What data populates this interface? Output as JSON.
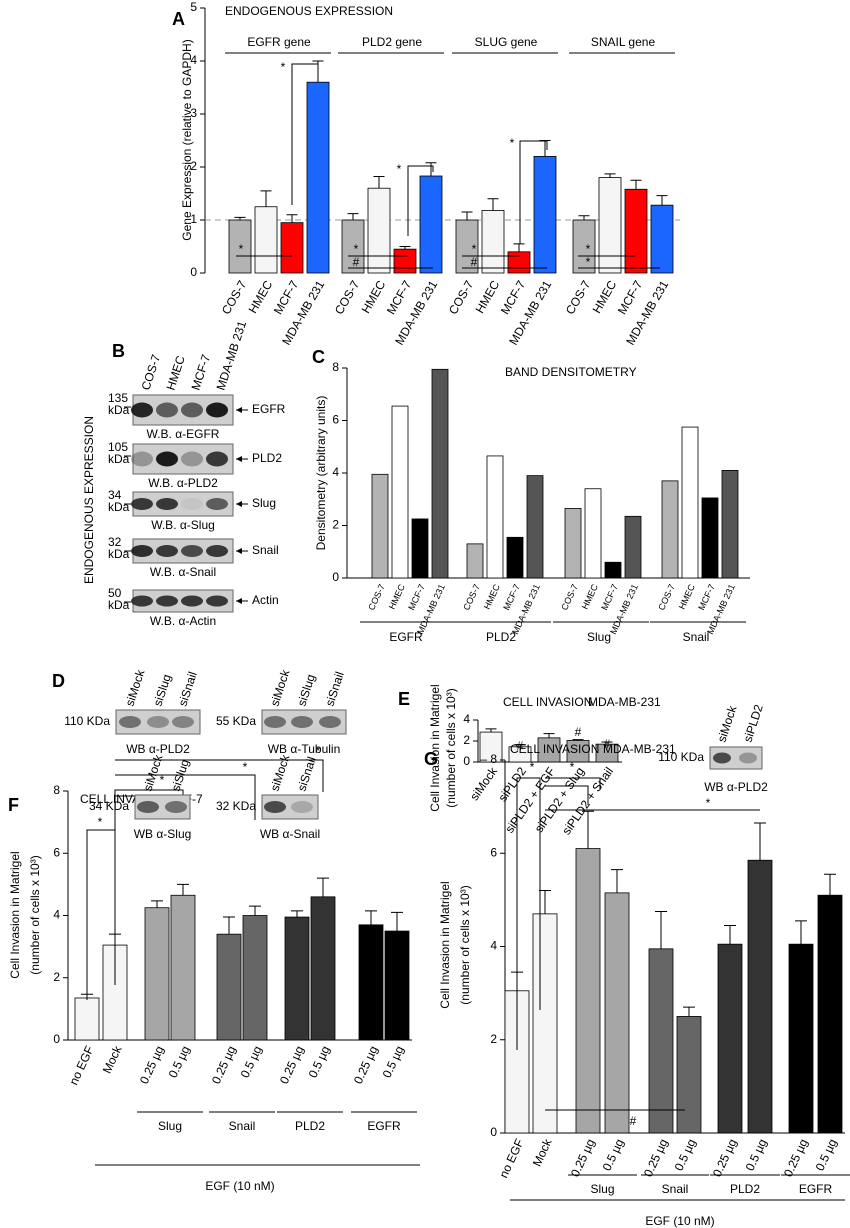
{
  "chart_data": [
    {
      "type": "bar",
      "panel": "A",
      "title": "ENDOGENOUS EXPRESSION",
      "y_label": "Gene Expression (relative to GAPDH)",
      "categories": [
        "EGFR gene",
        "PLD2 gene",
        "SLUG gene",
        "SNAIL gene"
      ],
      "series": [
        {
          "name": "COS-7",
          "color": "#b3b3b3",
          "label_color": "#000000",
          "values": [
            1.0,
            1.0,
            1.0,
            1.0
          ],
          "errors": [
            0.05,
            0.12,
            0.15,
            0.08
          ]
        },
        {
          "name": "HMEC",
          "color": "#f5f5f5",
          "label_color": "#000000",
          "values": [
            1.25,
            1.6,
            1.18,
            1.8
          ],
          "errors": [
            0.3,
            0.22,
            0.22,
            0.07
          ]
        },
        {
          "name": "MCF-7",
          "color": "#ff0000",
          "label_color": "#ff0000",
          "values": [
            0.95,
            0.45,
            0.4,
            1.58
          ],
          "errors": [
            0.15,
            0.05,
            0.15,
            0.17
          ]
        },
        {
          "name": "MDA-MB 231",
          "color": "#1a66ff",
          "label_color": "#1a66ff",
          "values": [
            3.6,
            1.83,
            2.2,
            1.28
          ],
          "errors": [
            0.4,
            0.25,
            0.3,
            0.18
          ]
        }
      ],
      "ylim": [
        0,
        5
      ],
      "yticks": [
        0,
        1,
        2,
        3,
        4,
        5
      ],
      "reference_line": 1,
      "annotations": [
        "*",
        "*",
        "*",
        "*",
        "#",
        "*",
        "*",
        "#",
        "*",
        "*"
      ]
    },
    {
      "type": "bar",
      "panel": "C",
      "title": "BAND DENSITOMETRY",
      "y_label": "Densitometry (arbitrary units)",
      "categories": [
        "EGFR",
        "PLD2",
        "Slug",
        "Snail"
      ],
      "series": [
        {
          "name": "COS-7",
          "color": "#b3b3b3",
          "label_color": "#000000",
          "values": [
            3.95,
            1.3,
            2.65,
            3.7
          ]
        },
        {
          "name": "HMEC",
          "color": "#ffffff",
          "label_color": "#000000",
          "values": [
            6.55,
            4.65,
            3.4,
            5.75
          ]
        },
        {
          "name": "MCF-7",
          "color": "#000000",
          "label_color": "#ff0000",
          "values": [
            2.25,
            1.55,
            0.6,
            3.05
          ]
        },
        {
          "name": "MDA-MB 231",
          "color": "#555555",
          "label_color": "#1a66ff",
          "values": [
            7.95,
            3.9,
            2.35,
            4.1
          ]
        }
      ],
      "ylim": [
        0,
        8
      ],
      "yticks": [
        0,
        2,
        4,
        6,
        8
      ]
    },
    {
      "type": "bar",
      "panel": "E",
      "title": "CELL INVASION",
      "subtitle": "MDA-MB-231",
      "subtitle_color": "#1a66ff",
      "y_label": [
        "Cell Invasion in Matrigel",
        "(number of cells x 10³)"
      ],
      "categories": [
        "siMock",
        "siPLD2",
        "siPLD2 + EGF",
        "siPLD2 + Slug",
        "siPLD2 + Snail"
      ],
      "values": [
        2.85,
        1.45,
        2.3,
        2.05,
        1.7
      ],
      "errors": [
        0.3,
        0.2,
        0.4,
        0.08,
        0.2
      ],
      "colors": [
        "#f5f5f5",
        "#f5f5f5",
        "#a6a6a6",
        "#a6a6a6",
        "#a6a6a6"
      ],
      "ylim": [
        0,
        4
      ],
      "yticks": [
        0,
        2,
        4
      ],
      "annotations": [
        "#",
        "#",
        "#"
      ]
    },
    {
      "type": "bar",
      "panel": "F",
      "title": "CELL INVASION",
      "subtitle": "MCF-7",
      "subtitle_color": "#ff0000",
      "y_label": [
        "Cell Invasion in Matrigel",
        "(number of cells x 10³)"
      ],
      "categories": [
        "no EGF",
        "Mock",
        "0.25 µg",
        "0.5 µg",
        "0.25 µg",
        "0.5 µg",
        "0.25 µg",
        "0.5 µg",
        "0.25 µg",
        "0.5 µg"
      ],
      "values": [
        1.35,
        3.05,
        4.25,
        4.65,
        3.4,
        4.0,
        3.95,
        4.6,
        3.7,
        3.5
      ],
      "errors": [
        0.12,
        0.35,
        0.22,
        0.35,
        0.55,
        0.3,
        0.2,
        0.6,
        0.45,
        0.6
      ],
      "colors": [
        "#f5f5f5",
        "#f5f5f5",
        "#a6a6a6",
        "#a6a6a6",
        "#666666",
        "#666666",
        "#333333",
        "#333333",
        "#000000",
        "#000000"
      ],
      "groups": [
        "Slug",
        "Snail",
        "PLD2",
        "EGFR"
      ],
      "treatment": "EGF (10 nM)",
      "ylim": [
        0,
        8
      ],
      "yticks": [
        0,
        2,
        4,
        6,
        8
      ],
      "annotations": [
        "*",
        "*",
        "*",
        "*"
      ]
    },
    {
      "type": "bar",
      "panel": "G",
      "title": "CELL INVASION",
      "subtitle": "MDA-MB-231",
      "subtitle_color": "#1a66ff",
      "y_label": [
        "Cell Invasion in Matrigel",
        "(number of cells x 10³)"
      ],
      "categories": [
        "no EGF",
        "Mock",
        "0.25 µg",
        "0.5 µg",
        "0.25 µg",
        "0.5 µg",
        "0.25 µg",
        "0.5 µg",
        "0.25 µg",
        "0.5 µg"
      ],
      "values": [
        3.05,
        4.7,
        6.1,
        5.15,
        3.95,
        2.5,
        4.05,
        5.85,
        4.05,
        5.1
      ],
      "errors": [
        0.4,
        0.5,
        0.8,
        0.5,
        0.8,
        0.2,
        0.4,
        0.8,
        0.5,
        0.45
      ],
      "colors": [
        "#f5f5f5",
        "#f5f5f5",
        "#a6a6a6",
        "#a6a6a6",
        "#666666",
        "#666666",
        "#333333",
        "#333333",
        "#000000",
        "#000000"
      ],
      "groups": [
        "Slug",
        "Snail",
        "PLD2",
        "EGFR"
      ],
      "treatment": "EGF (10 nM)",
      "ylim": [
        0,
        8
      ],
      "yticks": [
        0,
        2,
        4,
        6,
        {
          "value": 8,
          "label": "– 8"
        }
      ],
      "annotations": [
        "*",
        "*",
        "*",
        "#"
      ]
    }
  ],
  "blots": {
    "B": {
      "panel": "B",
      "side_label": "ENDOGENOUS EXPRESSION",
      "lanes": [
        "COS-7",
        "HMEC",
        "MCF-7",
        "MDA-MB 231"
      ],
      "lane_colors": [
        "#000000",
        "#000000",
        "#ff0000",
        "#1a66ff"
      ],
      "rows": [
        {
          "size": 135,
          "unit": "kDa",
          "target": "EGFR",
          "caption": "W.B. α-EGFR"
        },
        {
          "size": 105,
          "unit": "kDa",
          "target": "PLD2",
          "caption": "W.B. α-PLD2"
        },
        {
          "size": 34,
          "unit": "kDa",
          "target": "Slug",
          "caption": "W.B. α-Slug"
        },
        {
          "size": 32,
          "unit": "kDa",
          "target": "Snail",
          "caption": "W.B. α-Snail"
        },
        {
          "size": 50,
          "unit": "kDa",
          "target": "Actin",
          "caption": "W.B. α-Actin"
        }
      ]
    },
    "D": {
      "panel": "D",
      "items": [
        {
          "lanes": [
            "siMock",
            "siSlug",
            "siSnail"
          ],
          "size_label": "110 KDa",
          "caption": "WB α-PLD2"
        },
        {
          "lanes": [
            "siMock",
            "siSlug",
            "siSnail"
          ],
          "size_label": "55 KDa",
          "caption": "WB α-Tubulin"
        },
        {
          "lanes": [
            "siMock",
            "siSlug"
          ],
          "size_label": "34 KDa",
          "caption": "WB α-Slug"
        },
        {
          "lanes": [
            "siMock",
            "siSnail"
          ],
          "size_label": "32 KDa",
          "caption": "WB α-Snail"
        }
      ]
    },
    "E": {
      "lanes": [
        "siMock",
        "siPLD2"
      ],
      "size_label": "110 KDa",
      "caption": "WB α-PLD2"
    }
  }
}
